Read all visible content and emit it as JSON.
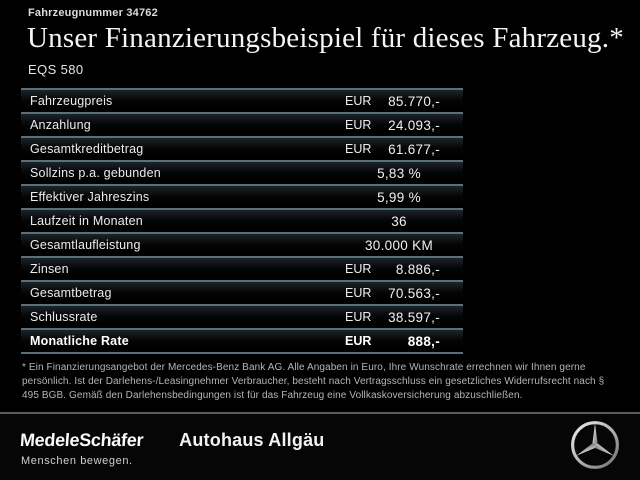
{
  "header": {
    "vehicle_number": "Fahrzeugnummer 34762",
    "title": "Unser Finanzierungsbeispiel für dieses Fahrzeug.*",
    "model": "EQS 580"
  },
  "table": {
    "rows": [
      {
        "label": "Fahrzeugpreis",
        "currency": "EUR",
        "value": "85.770,-",
        "emphasis": false
      },
      {
        "label": "Anzahlung",
        "currency": "EUR",
        "value": "24.093,-",
        "emphasis": false
      },
      {
        "label": "Gesamtkreditbetrag",
        "currency": "EUR",
        "value": "61.677,-",
        "emphasis": false
      },
      {
        "label": "Sollzins p.a. gebunden",
        "currency": "",
        "value": "5,83 %",
        "emphasis": false
      },
      {
        "label": "Effektiver Jahreszins",
        "currency": "",
        "value": "5,99 %",
        "emphasis": false
      },
      {
        "label": "Laufzeit in Monaten",
        "currency": "",
        "value": "36",
        "emphasis": false
      },
      {
        "label": "Gesamtlaufleistung",
        "currency": "",
        "value": "30.000 KM",
        "emphasis": false
      },
      {
        "label": "Zinsen",
        "currency": "EUR",
        "value": "8.886,-",
        "emphasis": false
      },
      {
        "label": "Gesamtbetrag",
        "currency": "EUR",
        "value": "70.563,-",
        "emphasis": false
      },
      {
        "label": "Schlussrate",
        "currency": "EUR",
        "value": "38.597,-",
        "emphasis": false
      },
      {
        "label": "Monatliche Rate",
        "currency": "EUR",
        "value": "888,-",
        "emphasis": true
      }
    ]
  },
  "fine_print": {
    "text": "* Ein Finanzierungsangebot der Mercedes-Benz Bank AG. Alle Angaben in Euro, Ihre Wunschrate errechnen wir Ihnen gerne persönlich. Ist der Darlehens-/Leasingnehmer Verbraucher, besteht nach Vertragsschluss ein gesetzliches Widerrufsrecht nach § 495 BGB. Gemäß den Darlehensbedingungen ist für das Fahrzeug eine Vollkaskoversicherung abzuschließen."
  },
  "footer": {
    "dealer_primary": "MedeleSchäfer",
    "dealer_secondary": "Autohaus Allgäu",
    "slogan": "Menschen bewegen.",
    "brand_icon": "mercedes-star-icon"
  },
  "colors": {
    "background": "#000000",
    "separator_line": "#93abb8",
    "footer_divider": "#5c5c5c",
    "text_primary": "#f0f0f0",
    "fine_print_text": "#b5b5b5",
    "logo_silver": "#d9d9d9"
  }
}
